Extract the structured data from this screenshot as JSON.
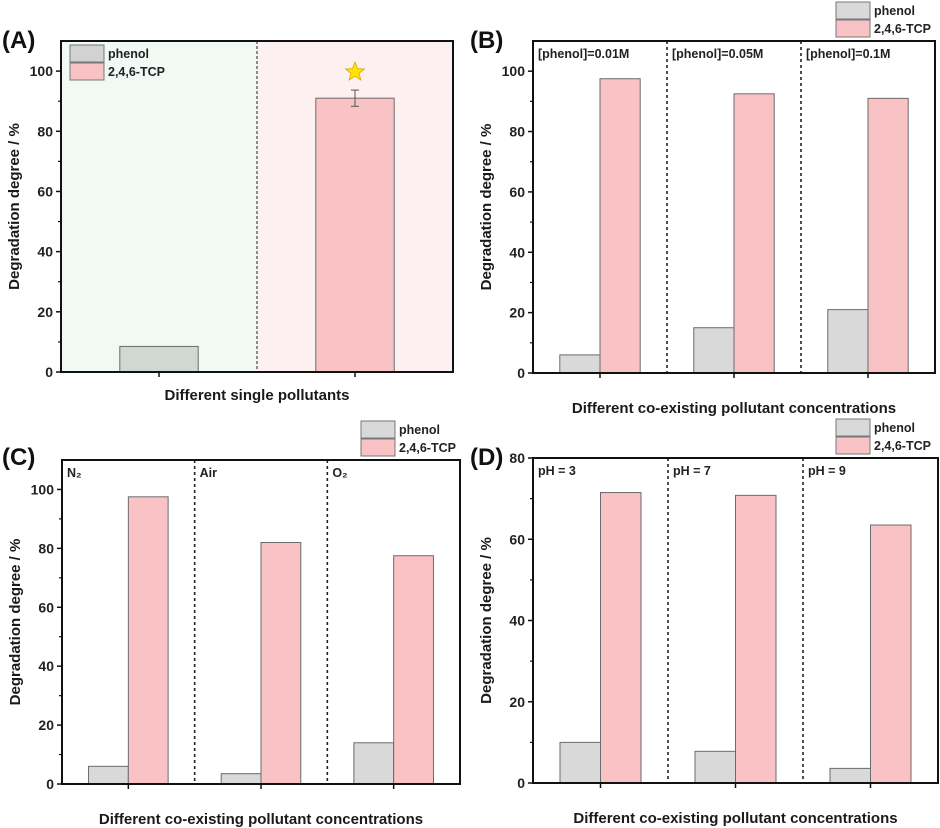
{
  "figure": {
    "colors": {
      "phenol": "#d9d9d9",
      "phenol_on_green": "#cfd8d3",
      "tcp": "#f9c2c4",
      "bar_stroke": "#6b6b6b",
      "bg_left_A": "#f1f9f5",
      "bg_right_A": "#fcf0f0",
      "axis": "#111111",
      "star": "#ffe600"
    }
  },
  "chart_data": [
    {
      "panel": "(A)",
      "type": "bar",
      "title": "",
      "xlabel": "Different single pollutants",
      "ylabel": "Degradation degree / %",
      "ylim": [
        0,
        110
      ],
      "yticks": [
        0,
        20,
        40,
        60,
        80,
        100
      ],
      "grid": false,
      "legend": {
        "placement": "top-left",
        "entries": [
          "phenol",
          "2,4,6-TCP"
        ]
      },
      "categories": [
        "phenol",
        "2,4,6-TCP"
      ],
      "series": [
        {
          "name": "phenol",
          "values": [
            8.5,
            null
          ]
        },
        {
          "name": "2,4,6-TCP",
          "values": [
            null,
            91
          ],
          "error": [
            null,
            2.7
          ]
        }
      ],
      "annotations": [
        "star-marker above 2,4,6-TCP bar"
      ],
      "group_labels": []
    },
    {
      "panel": "(B)",
      "type": "bar",
      "title": "",
      "xlabel": "Different co-existing pollutant concentrations",
      "ylabel": "Degradation degree / %",
      "ylim": [
        0,
        110
      ],
      "yticks": [
        0,
        20,
        40,
        60,
        80,
        100
      ],
      "grid": false,
      "legend": {
        "placement": "above-top-right",
        "entries": [
          "phenol",
          "2,4,6-TCP"
        ]
      },
      "categories": [
        "[phenol]=0.01M",
        "[phenol]=0.05M",
        "[phenol]=0.1M"
      ],
      "series": [
        {
          "name": "phenol",
          "values": [
            6,
            15,
            21
          ]
        },
        {
          "name": "2,4,6-TCP",
          "values": [
            97.5,
            92.5,
            91
          ]
        }
      ],
      "group_labels": [
        "[phenol]=0.01M",
        "[phenol]=0.05M",
        "[phenol]=0.1M"
      ]
    },
    {
      "panel": "(C)",
      "type": "bar",
      "title": "",
      "xlabel": "Different co-existing pollutant concentrations",
      "ylabel": "Degradation degree / %",
      "ylim": [
        0,
        110
      ],
      "yticks": [
        0,
        20,
        40,
        60,
        80,
        100
      ],
      "grid": false,
      "legend": {
        "placement": "above-top-right",
        "entries": [
          "phenol",
          "2,4,6-TCP"
        ]
      },
      "categories": [
        "N2",
        "Air",
        "O2"
      ],
      "series": [
        {
          "name": "phenol",
          "values": [
            6,
            3.5,
            14
          ]
        },
        {
          "name": "2,4,6-TCP",
          "values": [
            97.5,
            82,
            77.5
          ]
        }
      ],
      "group_labels": [
        "N₂",
        "Air",
        "O₂"
      ]
    },
    {
      "panel": "(D)",
      "type": "bar",
      "title": "",
      "xlabel": "Different co-existing pollutant concentrations",
      "ylabel": "Degradation degree / %",
      "ylim": [
        0,
        80
      ],
      "yticks": [
        0,
        20,
        40,
        60,
        80
      ],
      "grid": false,
      "legend": {
        "placement": "above-top-right",
        "entries": [
          "phenol",
          "2,4,6-TCP"
        ]
      },
      "categories": [
        "pH = 3",
        "pH = 7",
        "pH = 9"
      ],
      "series": [
        {
          "name": "phenol",
          "values": [
            10,
            7.8,
            3.6
          ]
        },
        {
          "name": "2,4,6-TCP",
          "values": [
            71.5,
            70.8,
            63.5
          ]
        }
      ],
      "group_labels": [
        "pH = 3",
        "pH = 7",
        "pH = 9"
      ]
    }
  ]
}
